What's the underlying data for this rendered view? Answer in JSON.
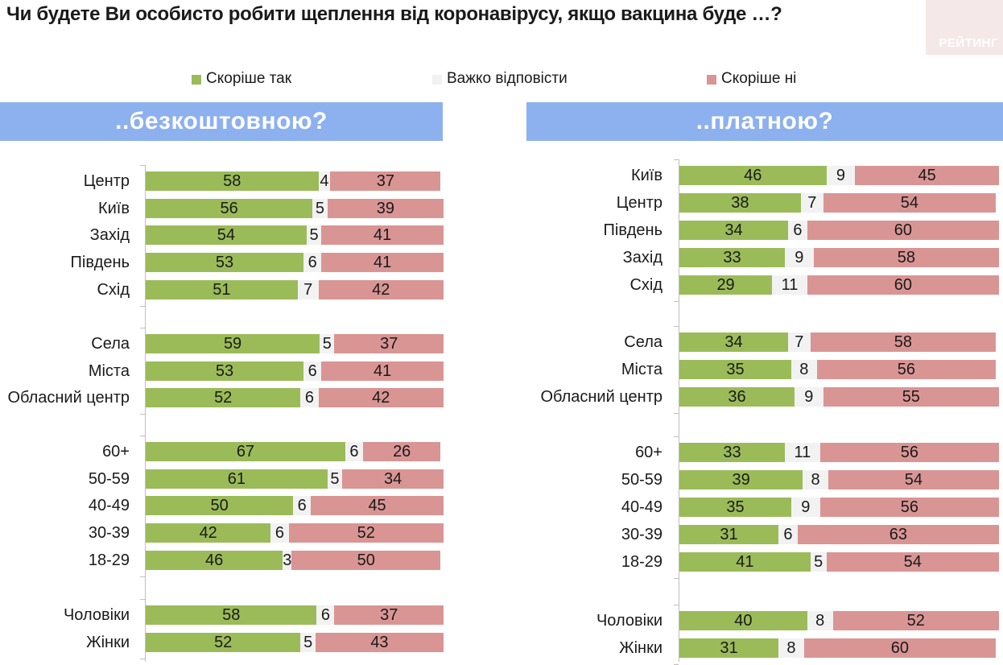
{
  "title": "Чи будете Ви особисто робити щеплення від коронавірусу, якщо вакцина буде …?",
  "logo": "РЕЙТИНГ",
  "legend": [
    {
      "label": "Скоріше так",
      "color": "#9bbb59"
    },
    {
      "label": "Важко відповісти",
      "color": "#f2f2f2"
    },
    {
      "label": "Скоріше ні",
      "color": "#d99594"
    }
  ],
  "chart_data": [
    {
      "type": "bar",
      "stacked": true,
      "orientation": "horizontal",
      "title": "..безкоштовною?",
      "series_names": [
        "Скоріше так",
        "Важко відповісти",
        "Скоріше ні"
      ],
      "colors": [
        "#9bbb59",
        "#f2f2f2",
        "#d99594"
      ],
      "xlim": [
        0,
        100
      ],
      "groups": [
        {
          "rows": [
            {
              "label": "Центр",
              "values": [
                58,
                4,
                37
              ]
            },
            {
              "label": "Київ",
              "values": [
                56,
                5,
                39
              ]
            },
            {
              "label": "Захід",
              "values": [
                54,
                5,
                41
              ]
            },
            {
              "label": "Південь",
              "values": [
                53,
                6,
                41
              ]
            },
            {
              "label": "Схід",
              "values": [
                51,
                7,
                42
              ]
            }
          ]
        },
        {
          "rows": [
            {
              "label": "Села",
              "values": [
                59,
                5,
                37
              ]
            },
            {
              "label": "Міста",
              "values": [
                53,
                6,
                41
              ]
            },
            {
              "label": "Обласний центр",
              "values": [
                52,
                6,
                42
              ]
            }
          ]
        },
        {
          "rows": [
            {
              "label": "60+",
              "values": [
                67,
                6,
                26
              ]
            },
            {
              "label": "50-59",
              "values": [
                61,
                5,
                34
              ]
            },
            {
              "label": "40-49",
              "values": [
                50,
                6,
                45
              ]
            },
            {
              "label": "30-39",
              "values": [
                42,
                6,
                52
              ]
            },
            {
              "label": "18-29",
              "values": [
                46,
                3,
                50
              ]
            }
          ]
        },
        {
          "rows": [
            {
              "label": "Чоловіки",
              "values": [
                58,
                6,
                37
              ]
            },
            {
              "label": "Жінки",
              "values": [
                52,
                5,
                43
              ]
            }
          ]
        }
      ]
    },
    {
      "type": "bar",
      "stacked": true,
      "orientation": "horizontal",
      "title": "..платною?",
      "series_names": [
        "Скоріше так",
        "Важко відповісти",
        "Скоріше ні"
      ],
      "colors": [
        "#9bbb59",
        "#f2f2f2",
        "#d99594"
      ],
      "xlim": [
        0,
        100
      ],
      "groups": [
        {
          "rows": [
            {
              "label": "Київ",
              "values": [
                46,
                9,
                45
              ]
            },
            {
              "label": "Центр",
              "values": [
                38,
                7,
                54
              ]
            },
            {
              "label": "Південь",
              "values": [
                34,
                6,
                60
              ]
            },
            {
              "label": "Захід",
              "values": [
                33,
                9,
                58
              ]
            },
            {
              "label": "Схід",
              "values": [
                29,
                11,
                60
              ]
            }
          ]
        },
        {
          "rows": [
            {
              "label": "Села",
              "values": [
                34,
                7,
                58
              ]
            },
            {
              "label": "Міста",
              "values": [
                35,
                8,
                56
              ]
            },
            {
              "label": "Обласний центр",
              "values": [
                36,
                9,
                55
              ]
            }
          ]
        },
        {
          "rows": [
            {
              "label": "60+",
              "values": [
                33,
                11,
                56
              ]
            },
            {
              "label": "50-59",
              "values": [
                39,
                8,
                54
              ]
            },
            {
              "label": "40-49",
              "values": [
                35,
                9,
                56
              ]
            },
            {
              "label": "30-39",
              "values": [
                31,
                6,
                63
              ]
            },
            {
              "label": "18-29",
              "values": [
                41,
                5,
                54
              ]
            }
          ]
        },
        {
          "rows": [
            {
              "label": "Чоловіки",
              "values": [
                40,
                8,
                52
              ]
            },
            {
              "label": "Жінки",
              "values": [
                31,
                8,
                60
              ]
            }
          ]
        }
      ]
    }
  ]
}
